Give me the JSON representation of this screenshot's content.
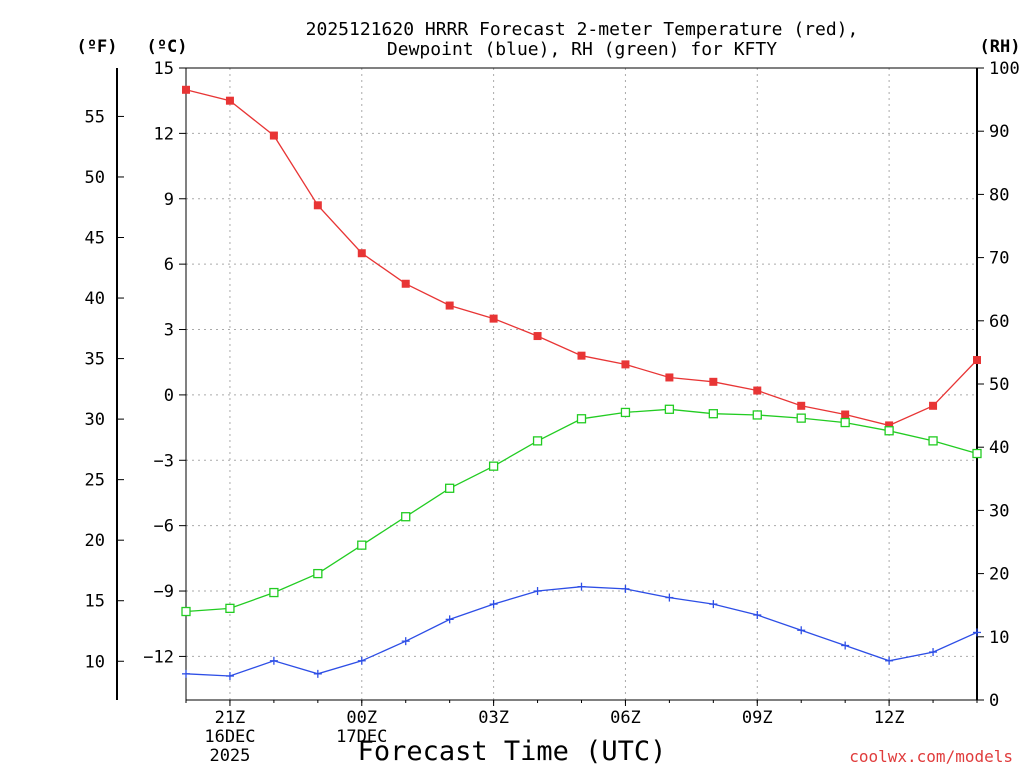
{
  "title": {
    "line1": "2025121620 HRRR Forecast 2-meter Temperature (red),",
    "line2": "Dewpoint (blue), RH (green) for KFTY"
  },
  "axis_units": {
    "f": "(ºF)",
    "c": "(ºC)",
    "rh": "(RH)"
  },
  "xlabel": "Forecast Time (UTC)",
  "credit": "coolwx.com/models",
  "colors": {
    "temperature": "#e83535",
    "dewpoint": "#2d4ee6",
    "rh": "#22cc22",
    "grid": "#aaaaaa",
    "axis": "#000000"
  },
  "chart_data": {
    "type": "line",
    "title": "2025121620 HRRR Forecast 2-meter Temperature (red), Dewpoint (blue), RH (green) for KFTY",
    "xlabel": "Forecast Time (UTC)",
    "x_hours_after_20Z": [
      0,
      1,
      2,
      3,
      4,
      5,
      6,
      7,
      8,
      9,
      10,
      11,
      12,
      13,
      14,
      15,
      16,
      17,
      18
    ],
    "xlim": [
      0,
      18
    ],
    "x_ticks": [
      {
        "hour": 1,
        "label": "21Z",
        "sub": [
          "16DEC",
          "2025"
        ]
      },
      {
        "hour": 4,
        "label": "00Z",
        "sub": [
          "17DEC"
        ]
      },
      {
        "hour": 7,
        "label": "03Z",
        "sub": []
      },
      {
        "hour": 10,
        "label": "06Z",
        "sub": []
      },
      {
        "hour": 13,
        "label": "09Z",
        "sub": []
      },
      {
        "hour": 16,
        "label": "12Z",
        "sub": []
      }
    ],
    "y_celsius": {
      "lim": [
        -14,
        15
      ],
      "ticks": [
        15,
        12,
        9,
        6,
        3,
        0,
        -3,
        -6,
        -9,
        -12
      ]
    },
    "y_fahrenheit": {
      "ticks": [
        55,
        50,
        45,
        40,
        35,
        30,
        25,
        20,
        15,
        10
      ]
    },
    "y_rh": {
      "lim": [
        0,
        100
      ],
      "ticks": [
        100,
        90,
        80,
        70,
        60,
        50,
        40,
        30,
        20,
        10,
        0
      ]
    },
    "series": [
      {
        "name": "Temperature",
        "unit": "C",
        "axis": "celsius",
        "marker": "filled-square",
        "color": "#e83535",
        "values": [
          14.0,
          13.5,
          11.9,
          8.7,
          6.5,
          5.1,
          4.1,
          3.5,
          2.7,
          1.8,
          1.4,
          0.8,
          0.6,
          0.2,
          -0.5,
          -0.9,
          -1.4,
          -0.5,
          1.6
        ]
      },
      {
        "name": "Dewpoint",
        "unit": "C",
        "axis": "celsius",
        "marker": "plus",
        "color": "#2d4ee6",
        "values": [
          -12.8,
          -12.9,
          -12.2,
          -12.8,
          -12.2,
          -11.3,
          -10.3,
          -9.6,
          -9.0,
          -8.8,
          -8.9,
          -9.3,
          -9.6,
          -10.1,
          -10.8,
          -11.5,
          -12.2,
          -11.8,
          -10.9
        ]
      },
      {
        "name": "RH",
        "unit": "%",
        "axis": "rh",
        "marker": "open-square",
        "color": "#22cc22",
        "values": [
          14,
          14.5,
          17,
          20,
          24.5,
          29,
          33.5,
          37,
          41,
          44.5,
          45.5,
          46,
          45.3,
          45.1,
          44.6,
          43.9,
          42.6,
          41,
          39
        ]
      }
    ]
  }
}
